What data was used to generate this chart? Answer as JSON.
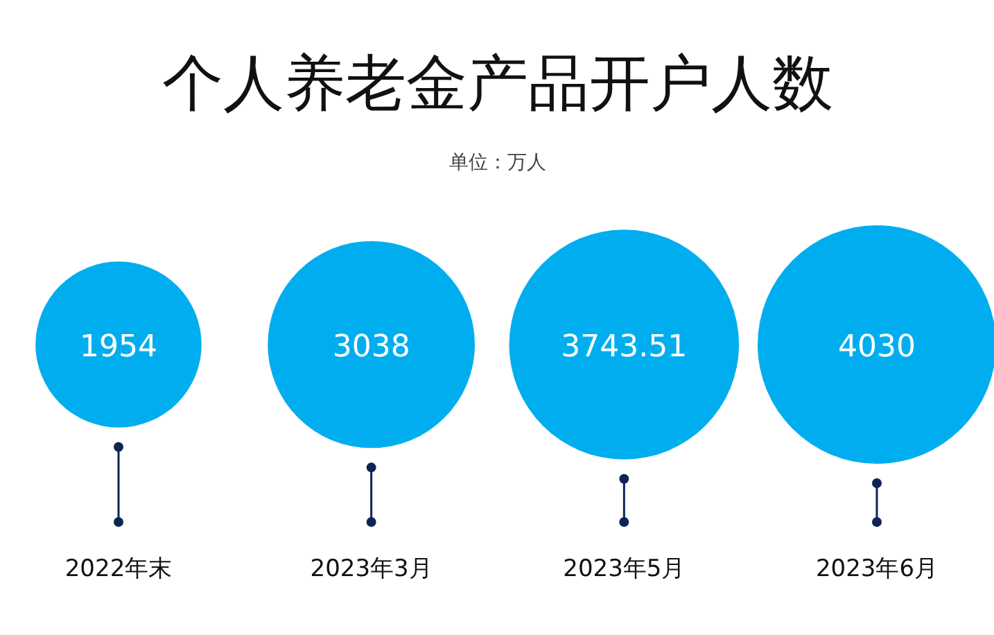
{
  "chart_data": {
    "type": "other",
    "title": "个人养老金产品开户人数",
    "subtitle": "单位：万人",
    "categories": [
      "2022年末",
      "2023年3月",
      "2023年5月",
      "2023年6月"
    ],
    "values": [
      1954,
      3038,
      3743.51,
      4030
    ],
    "value_labels": [
      "1954",
      "3038",
      "3743.51",
      "4030"
    ],
    "color": "#00aeef"
  }
}
